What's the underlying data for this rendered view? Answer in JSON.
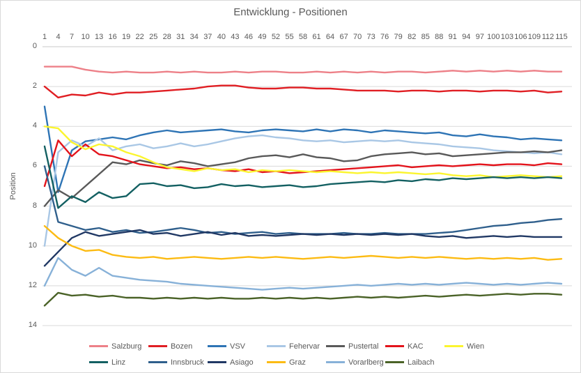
{
  "chart_data": {
    "type": "line",
    "title": "Entwicklung - Positionen",
    "xlabel": "",
    "ylabel": "Position",
    "y_axis_inverted": true,
    "ylim": [
      0,
      14
    ],
    "grid": "horizontal",
    "legend_position": "bottom",
    "legend_row_counts": [
      7,
      6
    ],
    "x_ticks": [
      1,
      4,
      7,
      10,
      13,
      16,
      19,
      22,
      25,
      28,
      31,
      34,
      37,
      40,
      43,
      46,
      49,
      52,
      55,
      58,
      61,
      64,
      67,
      70,
      73,
      76,
      79,
      82,
      85,
      88,
      91,
      94,
      97,
      100,
      103,
      106,
      109,
      112,
      115
    ],
    "y_ticks": [
      0,
      2,
      4,
      6,
      8,
      10,
      12,
      14
    ],
    "series": [
      {
        "name": "Salzburg",
        "color": "#ED8088",
        "values": [
          1,
          1,
          1,
          1.15,
          1.25,
          1.3,
          1.25,
          1.3,
          1.3,
          1.25,
          1.3,
          1.25,
          1.3,
          1.3,
          1.25,
          1.3,
          1.25,
          1.25,
          1.3,
          1.3,
          1.25,
          1.3,
          1.25,
          1.3,
          1.25,
          1.3,
          1.25,
          1.25,
          1.3,
          1.25,
          1.2,
          1.25,
          1.2,
          1.25,
          1.2,
          1.25,
          1.2,
          1.25,
          1.25
        ]
      },
      {
        "name": "Bozen",
        "color": "#E01E23",
        "values": [
          2,
          2.55,
          2.4,
          2.45,
          2.3,
          2.4,
          2.3,
          2.3,
          2.25,
          2.2,
          2.15,
          2.1,
          2.0,
          1.95,
          1.95,
          2.05,
          2.1,
          2.1,
          2.05,
          2.05,
          2.1,
          2.1,
          2.15,
          2.2,
          2.2,
          2.2,
          2.25,
          2.2,
          2.2,
          2.25,
          2.2,
          2.2,
          2.25,
          2.2,
          2.2,
          2.25,
          2.2,
          2.3,
          2.25
        ]
      },
      {
        "name": "VSV",
        "color": "#2E74B5",
        "values": [
          3,
          7.3,
          5.2,
          4.75,
          4.65,
          4.55,
          4.65,
          4.45,
          4.3,
          4.2,
          4.3,
          4.25,
          4.2,
          4.15,
          4.25,
          4.3,
          4.2,
          4.15,
          4.2,
          4.25,
          4.15,
          4.25,
          4.15,
          4.2,
          4.3,
          4.2,
          4.25,
          4.3,
          4.35,
          4.3,
          4.45,
          4.5,
          4.4,
          4.5,
          4.55,
          4.65,
          4.6,
          4.65,
          4.7
        ]
      },
      {
        "name": "Fehervar",
        "color": "#A9C7E5",
        "values": [
          10,
          5.3,
          4.7,
          5.0,
          4.6,
          5.2,
          5.0,
          4.9,
          5.1,
          5.0,
          4.85,
          5.0,
          4.9,
          4.75,
          4.6,
          4.5,
          4.45,
          4.55,
          4.6,
          4.7,
          4.75,
          4.7,
          4.8,
          4.75,
          4.7,
          4.75,
          4.7,
          4.8,
          4.85,
          4.9,
          5.0,
          5.05,
          5.1,
          5.2,
          5.25,
          5.3,
          5.35,
          5.3,
          5.4
        ]
      },
      {
        "name": "Pustertal",
        "color": "#595959",
        "values": [
          8,
          7.2,
          7.6,
          7.0,
          6.4,
          5.8,
          5.9,
          5.7,
          5.85,
          5.95,
          5.75,
          5.85,
          6.0,
          5.9,
          5.8,
          5.6,
          5.5,
          5.45,
          5.55,
          5.4,
          5.55,
          5.6,
          5.75,
          5.7,
          5.5,
          5.4,
          5.35,
          5.3,
          5.4,
          5.35,
          5.5,
          5.45,
          5.4,
          5.35,
          5.3,
          5.3,
          5.25,
          5.3,
          5.2
        ]
      },
      {
        "name": "KAC",
        "color": "#E3131B",
        "values": [
          7,
          4.7,
          5.5,
          4.9,
          5.4,
          5.5,
          5.7,
          5.9,
          6.0,
          6.1,
          6.05,
          6.15,
          6.1,
          6.2,
          6.25,
          6.15,
          6.3,
          6.25,
          6.35,
          6.3,
          6.25,
          6.2,
          6.15,
          6.1,
          6.05,
          6.0,
          5.95,
          6.05,
          6.0,
          5.95,
          6.0,
          5.95,
          5.9,
          5.95,
          5.9,
          5.9,
          5.95,
          5.85,
          5.9
        ]
      },
      {
        "name": "Wien",
        "color": "#FBF52F",
        "values": [
          4,
          4.1,
          4.8,
          5.15,
          4.9,
          5.0,
          5.3,
          5.5,
          5.8,
          6.05,
          6.15,
          6.25,
          6.1,
          6.2,
          6.15,
          6.3,
          6.2,
          6.25,
          6.2,
          6.25,
          6.3,
          6.25,
          6.3,
          6.35,
          6.3,
          6.35,
          6.3,
          6.35,
          6.4,
          6.35,
          6.45,
          6.5,
          6.45,
          6.55,
          6.5,
          6.45,
          6.5,
          6.55,
          6.5
        ]
      },
      {
        "name": "Linz",
        "color": "#136062",
        "values": [
          5,
          8.1,
          7.5,
          7.8,
          7.3,
          7.6,
          7.5,
          6.9,
          6.85,
          7.0,
          6.95,
          7.1,
          7.05,
          6.9,
          7.0,
          6.95,
          7.05,
          7.0,
          6.95,
          7.05,
          7.0,
          6.9,
          6.85,
          6.8,
          6.75,
          6.8,
          6.7,
          6.75,
          6.65,
          6.7,
          6.6,
          6.65,
          6.6,
          6.55,
          6.6,
          6.55,
          6.6,
          6.55,
          6.6
        ]
      },
      {
        "name": "Innsbruck",
        "color": "#2F5F8C",
        "values": [
          6,
          8.8,
          9.0,
          9.2,
          9.1,
          9.3,
          9.2,
          9.35,
          9.3,
          9.2,
          9.1,
          9.2,
          9.35,
          9.3,
          9.4,
          9.35,
          9.3,
          9.4,
          9.35,
          9.4,
          9.4,
          9.4,
          9.35,
          9.4,
          9.4,
          9.35,
          9.4,
          9.4,
          9.4,
          9.35,
          9.3,
          9.2,
          9.1,
          9.0,
          8.95,
          8.85,
          8.8,
          8.7,
          8.65
        ]
      },
      {
        "name": "Asiago",
        "color": "#203864",
        "values": [
          11,
          10.3,
          9.6,
          9.3,
          9.5,
          9.4,
          9.3,
          9.2,
          9.4,
          9.35,
          9.5,
          9.4,
          9.3,
          9.45,
          9.35,
          9.5,
          9.45,
          9.5,
          9.45,
          9.4,
          9.45,
          9.4,
          9.45,
          9.4,
          9.45,
          9.4,
          9.45,
          9.4,
          9.5,
          9.55,
          9.5,
          9.6,
          9.55,
          9.5,
          9.55,
          9.5,
          9.55,
          9.55,
          9.55
        ]
      },
      {
        "name": "Graz",
        "color": "#FCBB13",
        "values": [
          9,
          9.6,
          10.0,
          10.25,
          10.2,
          10.45,
          10.55,
          10.6,
          10.55,
          10.65,
          10.6,
          10.55,
          10.6,
          10.65,
          10.6,
          10.55,
          10.6,
          10.55,
          10.6,
          10.65,
          10.6,
          10.55,
          10.6,
          10.55,
          10.5,
          10.55,
          10.6,
          10.55,
          10.6,
          10.55,
          10.6,
          10.65,
          10.6,
          10.65,
          10.6,
          10.65,
          10.6,
          10.7,
          10.65
        ]
      },
      {
        "name": "Vorarlberg",
        "color": "#87B1D8",
        "values": [
          12,
          10.6,
          11.2,
          11.5,
          11.1,
          11.5,
          11.6,
          11.7,
          11.75,
          11.8,
          11.9,
          11.95,
          12.0,
          12.05,
          12.1,
          12.15,
          12.2,
          12.15,
          12.1,
          12.15,
          12.1,
          12.05,
          12.0,
          11.95,
          12.0,
          11.95,
          11.9,
          11.95,
          11.9,
          11.95,
          11.9,
          11.85,
          11.9,
          11.95,
          11.9,
          11.95,
          11.9,
          11.85,
          11.9
        ]
      },
      {
        "name": "Laibach",
        "color": "#4A6227",
        "values": [
          13,
          12.35,
          12.5,
          12.45,
          12.55,
          12.5,
          12.6,
          12.6,
          12.65,
          12.6,
          12.65,
          12.6,
          12.65,
          12.6,
          12.65,
          12.65,
          12.6,
          12.65,
          12.6,
          12.65,
          12.6,
          12.65,
          12.6,
          12.55,
          12.6,
          12.55,
          12.6,
          12.55,
          12.5,
          12.55,
          12.5,
          12.45,
          12.5,
          12.45,
          12.4,
          12.45,
          12.4,
          12.4,
          12.45
        ]
      }
    ],
    "colors": {
      "gridline": "#D9D9D9",
      "axis_line": "#C8C8C8",
      "text": "#595959",
      "background": "#FFFFFF"
    }
  }
}
